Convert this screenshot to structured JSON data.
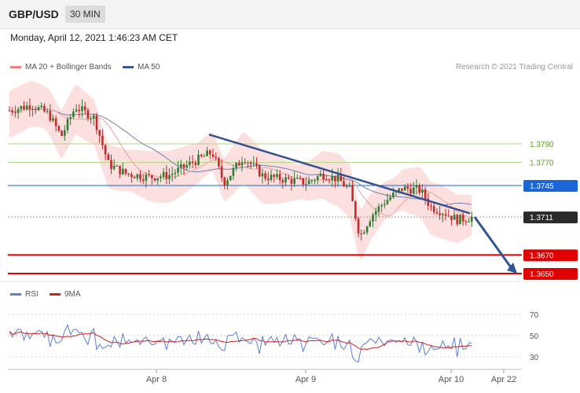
{
  "header": {
    "symbol": "GBP/USD",
    "timeframe": "30 MIN"
  },
  "datetime": "Monday, April 12, 2021 1:46:23 AM CET",
  "legend": {
    "ma20": {
      "label": "MA 20 + Bollinger Bands",
      "color": "#f08080"
    },
    "ma50": {
      "label": "MA 50",
      "color": "#3d5a8c"
    },
    "credit": "Research © 2021 Trading Central"
  },
  "rsi_legend": {
    "rsi": {
      "label": "RSI",
      "color": "#5b7fd6"
    },
    "ma9": {
      "label": "9MA",
      "color": "#d02020"
    }
  },
  "chart_data": [
    {
      "type": "candlestick",
      "symbol": "GBP/USD",
      "interval": "30 MIN",
      "ylim": [
        1.364,
        1.385
      ],
      "grid": false,
      "x_ticks": [
        "Apr 8",
        "Apr 9",
        "Apr 10",
        "Apr 22"
      ],
      "price_levels": [
        {
          "label": "1.3790",
          "value": 1.379,
          "style": "resistance",
          "color": "#7cb342"
        },
        {
          "label": "1.3770",
          "value": 1.377,
          "style": "resistance",
          "color": "#7cb342"
        },
        {
          "label": "1.3745",
          "value": 1.3745,
          "style": "pivot",
          "color": "#1a66d6"
        },
        {
          "label": "1.3711",
          "value": 1.3711,
          "style": "last",
          "color": "#2a2a2a"
        },
        {
          "label": "1.3670",
          "value": 1.367,
          "style": "support",
          "color": "#e00000"
        },
        {
          "label": "1.3650",
          "value": 1.365,
          "style": "support",
          "color": "#e00000"
        }
      ],
      "trendline": {
        "from": 1.38,
        "to": 1.3715
      },
      "forecast_arrow": {
        "from": 1.3711,
        "to": 1.365
      }
    },
    {
      "type": "line",
      "name": "RSI",
      "ylim": [
        20,
        80
      ],
      "y_ticks": [
        70,
        50,
        30
      ],
      "series": [
        {
          "name": "RSI"
        },
        {
          "name": "9MA"
        }
      ]
    }
  ]
}
